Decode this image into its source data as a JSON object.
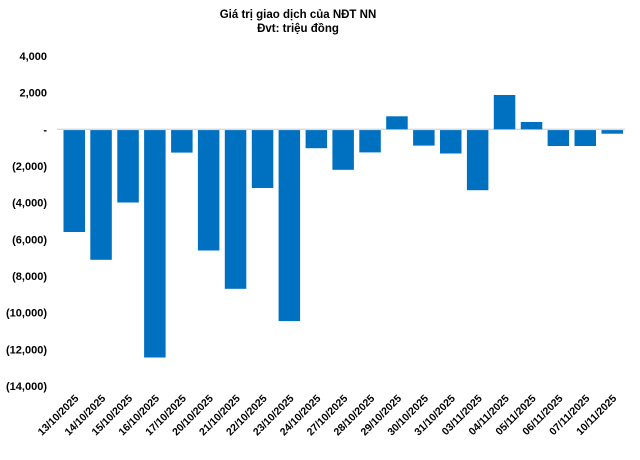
{
  "chart_data": {
    "type": "bar",
    "title": "Giá trị giao dịch của NĐT NN",
    "subtitle": "Đvt: triệu đồng",
    "categories": [
      "13/10/2025",
      "14/10/2025",
      "15/10/2025",
      "16/10/2025",
      "17/10/2025",
      "20/10/2025",
      "21/10/2025",
      "22/10/2025",
      "23/10/2025",
      "24/10/2025",
      "27/10/2025",
      "28/10/2025",
      "29/10/2025",
      "30/10/2025",
      "31/10/2025",
      "03/11/2025",
      "04/11/2025",
      "05/11/2025",
      "06/11/2025",
      "07/11/2025",
      "10/11/2025"
    ],
    "values": [
      -5600,
      -7120,
      -3990,
      -12450,
      -1270,
      -6610,
      -8700,
      -3200,
      -10460,
      -1030,
      -2210,
      -1260,
      710,
      -890,
      -1320,
      -3320,
      1870,
      400,
      -910,
      -910,
      -240
    ],
    "ylabel": "",
    "xlabel": "",
    "ylim": [
      -14000,
      4000
    ],
    "ytick_step": 2000,
    "ytick_labels": [
      "4,000",
      "2,000",
      "-",
      "(2,000)",
      "(4,000)",
      "(6,000)",
      "(8,000)",
      "(10,000)",
      "(12,000)",
      "(14,000)"
    ],
    "zero_label": "-",
    "negative_format": "parentheses",
    "grid": false,
    "legend": false,
    "bar_color": "#0070C0",
    "axis_line_color": "#D9D9D9",
    "text_color": "#000000",
    "background_color": "#FFFFFF"
  }
}
